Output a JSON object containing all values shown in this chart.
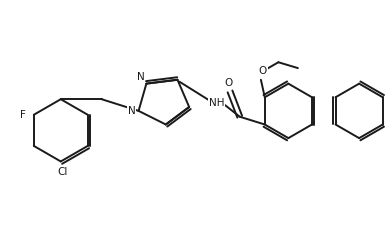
{
  "bg_color": "#ffffff",
  "line_color": "#1a1a1a",
  "line_width": 1.4,
  "font_size": 7.5,
  "figsize": [
    3.9,
    2.49
  ],
  "dpi": 100,
  "xlim": [
    0,
    10
  ],
  "ylim": [
    0,
    6.4
  ]
}
